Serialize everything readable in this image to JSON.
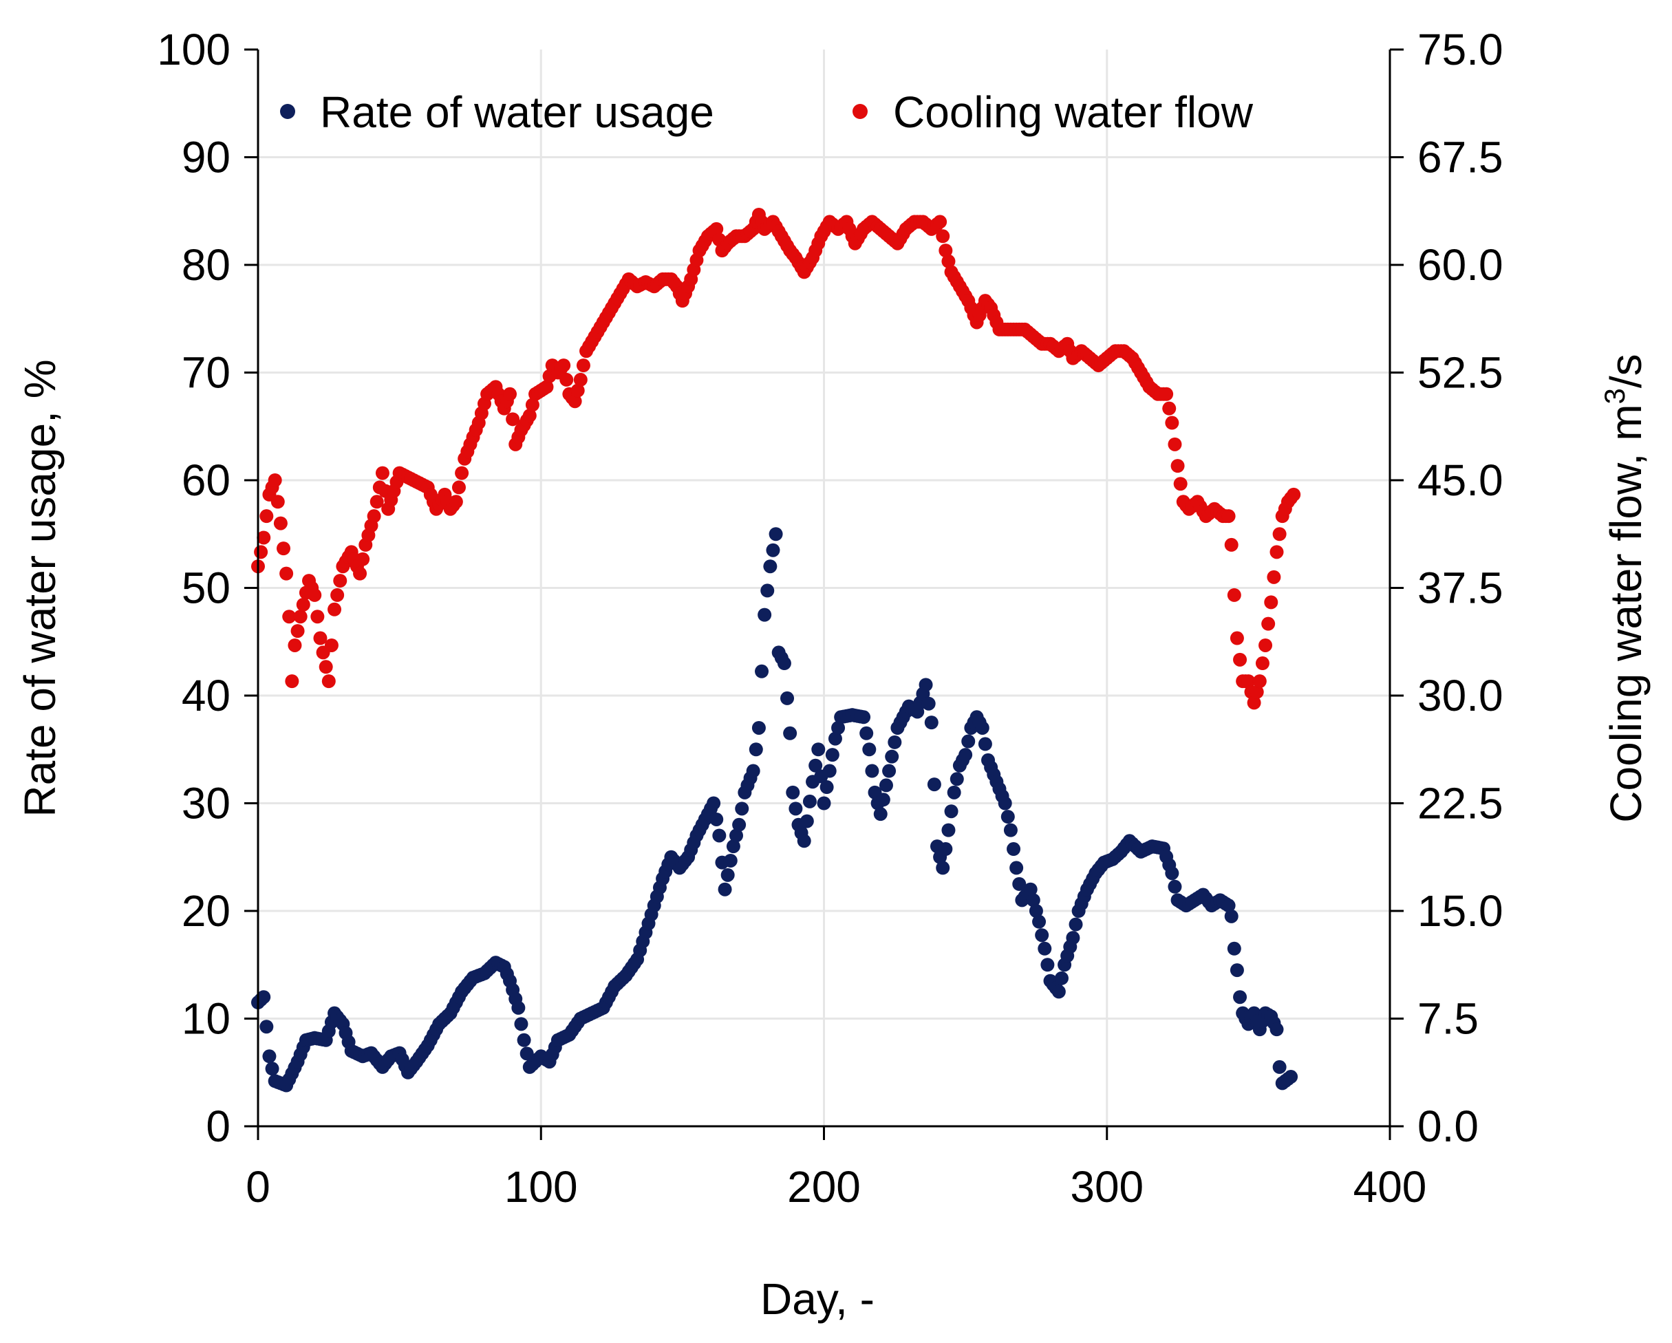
{
  "chart_data": {
    "type": "scatter",
    "title": "",
    "xlabel": "Day, -",
    "ylabel_left": "Rate of water usage, %",
    "ylabel_right_prefix": "Cooling water flow, m",
    "ylabel_right_sup": "3",
    "ylabel_right_suffix": "/s",
    "xlim": [
      0,
      400
    ],
    "ylim_left": [
      0,
      100
    ],
    "ylim_right": [
      0,
      75
    ],
    "x_ticks": [
      "0",
      "100",
      "200",
      "300",
      "400"
    ],
    "y_left_ticks": [
      "0",
      "10",
      "20",
      "30",
      "40",
      "50",
      "60",
      "70",
      "80",
      "90",
      "100"
    ],
    "y_right_ticks": [
      "0.0",
      "7.5",
      "15.0",
      "22.5",
      "30.0",
      "37.5",
      "45.0",
      "52.5",
      "60.0",
      "67.5",
      "75.0"
    ],
    "grid": true,
    "legend_position": "top",
    "series": [
      {
        "name": "Rate of water usage",
        "axis": "left",
        "color": "#0e1f5b",
        "anchors": [
          [
            0,
            11.5
          ],
          [
            2,
            12
          ],
          [
            4,
            6.5
          ],
          [
            6,
            4.2
          ],
          [
            10,
            3.8
          ],
          [
            14,
            6
          ],
          [
            17,
            8
          ],
          [
            20,
            8.2
          ],
          [
            24,
            8
          ],
          [
            27,
            10.5
          ],
          [
            30,
            9.5
          ],
          [
            33,
            7
          ],
          [
            37,
            6.5
          ],
          [
            40,
            6.8
          ],
          [
            44,
            5.5
          ],
          [
            47,
            6.5
          ],
          [
            50,
            6.8
          ],
          [
            53,
            5.0
          ],
          [
            56,
            6.0
          ],
          [
            60,
            7.5
          ],
          [
            64,
            9.5
          ],
          [
            68,
            10.5
          ],
          [
            72,
            12.5
          ],
          [
            76,
            13.8
          ],
          [
            80,
            14.2
          ],
          [
            84,
            15.2
          ],
          [
            87,
            14.8
          ],
          [
            89,
            13.5
          ],
          [
            92,
            11
          ],
          [
            94,
            8
          ],
          [
            96,
            5.5
          ],
          [
            100,
            6.5
          ],
          [
            103,
            6
          ],
          [
            106,
            8
          ],
          [
            110,
            8.5
          ],
          [
            114,
            10
          ],
          [
            118,
            10.5
          ],
          [
            122,
            11
          ],
          [
            126,
            13
          ],
          [
            130,
            14
          ],
          [
            134,
            15.5
          ],
          [
            137,
            18
          ],
          [
            140,
            20.5
          ],
          [
            143,
            23
          ],
          [
            146,
            25
          ],
          [
            149,
            24
          ],
          [
            152,
            25
          ],
          [
            155,
            27
          ],
          [
            158,
            28.5
          ],
          [
            161,
            30
          ],
          [
            163,
            27
          ],
          [
            165,
            22
          ],
          [
            168,
            26
          ],
          [
            170,
            28
          ],
          [
            172,
            31
          ],
          [
            175,
            33
          ],
          [
            177,
            37
          ],
          [
            179,
            47.5
          ],
          [
            181,
            52
          ],
          [
            183,
            55
          ],
          [
            184,
            44
          ],
          [
            186,
            43
          ],
          [
            188,
            36.5
          ],
          [
            189,
            31
          ],
          [
            191,
            28
          ],
          [
            193,
            26.5
          ],
          [
            196,
            32
          ],
          [
            198,
            35
          ],
          [
            200,
            30
          ],
          [
            202,
            33
          ],
          [
            204,
            36
          ],
          [
            206,
            38
          ],
          [
            210,
            38.2
          ],
          [
            214,
            38
          ],
          [
            216,
            35
          ],
          [
            218,
            31
          ],
          [
            220,
            29
          ],
          [
            223,
            33
          ],
          [
            226,
            37
          ],
          [
            230,
            39
          ],
          [
            233,
            38.5
          ],
          [
            236,
            41
          ],
          [
            238,
            37.5
          ],
          [
            240,
            26
          ],
          [
            242,
            24
          ],
          [
            244,
            27.5
          ],
          [
            246,
            31
          ],
          [
            248,
            33.5
          ],
          [
            250,
            34.5
          ],
          [
            252,
            37
          ],
          [
            254,
            38
          ],
          [
            256,
            37
          ],
          [
            258,
            34
          ],
          [
            261,
            32
          ],
          [
            264,
            30
          ],
          [
            266,
            27.5
          ],
          [
            268,
            24
          ],
          [
            270,
            21
          ],
          [
            273,
            22
          ],
          [
            276,
            19
          ],
          [
            278,
            16.5
          ],
          [
            280,
            13.5
          ],
          [
            283,
            12.5
          ],
          [
            285,
            15
          ],
          [
            288,
            17.5
          ],
          [
            290,
            20
          ],
          [
            293,
            22
          ],
          [
            296,
            23.5
          ],
          [
            299,
            24.5
          ],
          [
            302,
            24.8
          ],
          [
            305,
            25.5
          ],
          [
            308,
            26.5
          ],
          [
            312,
            25.5
          ],
          [
            316,
            26
          ],
          [
            320,
            25.8
          ],
          [
            323,
            23.5
          ],
          [
            325,
            21
          ],
          [
            328,
            20.5
          ],
          [
            331,
            21
          ],
          [
            334,
            21.5
          ],
          [
            337,
            20.5
          ],
          [
            340,
            21
          ],
          [
            343,
            20.5
          ],
          [
            344,
            19.5
          ],
          [
            345,
            16.5
          ],
          [
            346,
            14.5
          ],
          [
            347,
            12
          ],
          [
            348,
            10.5
          ],
          [
            350,
            9.5
          ],
          [
            352,
            10.5
          ],
          [
            354,
            9
          ],
          [
            356,
            10.5
          ],
          [
            358,
            10.2
          ],
          [
            360,
            9
          ],
          [
            361,
            5.5
          ],
          [
            362,
            4.0
          ],
          [
            365,
            4.6
          ]
        ]
      },
      {
        "name": "Cooling water flow",
        "axis": "right",
        "color": "#e10b0b",
        "anchors": [
          [
            0,
            39
          ],
          [
            2,
            41
          ],
          [
            4,
            44
          ],
          [
            6,
            45
          ],
          [
            8,
            42
          ],
          [
            10,
            38.5
          ],
          [
            11,
            35.5
          ],
          [
            12,
            31
          ],
          [
            13,
            33.5
          ],
          [
            15,
            35.5
          ],
          [
            18,
            38
          ],
          [
            20,
            37
          ],
          [
            22,
            34
          ],
          [
            24,
            32
          ],
          [
            25,
            31
          ],
          [
            27,
            36
          ],
          [
            30,
            39
          ],
          [
            33,
            40
          ],
          [
            36,
            38.5
          ],
          [
            38,
            40.5
          ],
          [
            41,
            42.5
          ],
          [
            44,
            45.5
          ],
          [
            46,
            43
          ],
          [
            50,
            45.5
          ],
          [
            55,
            45
          ],
          [
            60,
            44.5
          ],
          [
            63,
            43
          ],
          [
            66,
            44
          ],
          [
            68,
            43
          ],
          [
            70,
            43.5
          ],
          [
            73,
            46.5
          ],
          [
            76,
            48
          ],
          [
            78,
            49
          ],
          [
            81,
            51
          ],
          [
            84,
            51.5
          ],
          [
            87,
            50
          ],
          [
            89,
            51
          ],
          [
            91,
            47.5
          ],
          [
            93,
            48.5
          ],
          [
            96,
            49.5
          ],
          [
            98,
            51
          ],
          [
            102,
            51.5
          ],
          [
            104,
            53
          ],
          [
            106,
            52.5
          ],
          [
            108,
            53
          ],
          [
            110,
            51
          ],
          [
            112,
            50.5
          ],
          [
            114,
            52
          ],
          [
            116,
            54
          ],
          [
            119,
            55
          ],
          [
            122,
            56
          ],
          [
            125,
            57
          ],
          [
            128,
            58
          ],
          [
            131,
            59
          ],
          [
            134,
            58.5
          ],
          [
            137,
            58.8
          ],
          [
            140,
            58.5
          ],
          [
            143,
            59
          ],
          [
            146,
            59
          ],
          [
            148,
            58.5
          ],
          [
            150,
            57.5
          ],
          [
            153,
            59
          ],
          [
            156,
            61
          ],
          [
            159,
            62
          ],
          [
            162,
            62.5
          ],
          [
            164,
            61
          ],
          [
            166,
            61.5
          ],
          [
            169,
            62
          ],
          [
            172,
            62
          ],
          [
            175,
            62.5
          ],
          [
            177,
            63.5
          ],
          [
            179,
            62.5
          ],
          [
            182,
            63
          ],
          [
            185,
            62
          ],
          [
            188,
            61
          ],
          [
            190,
            60.5
          ],
          [
            193,
            59.5
          ],
          [
            196,
            60.5
          ],
          [
            199,
            62
          ],
          [
            202,
            63
          ],
          [
            205,
            62.5
          ],
          [
            208,
            63
          ],
          [
            211,
            61.5
          ],
          [
            214,
            62.5
          ],
          [
            217,
            63
          ],
          [
            220,
            62.5
          ],
          [
            223,
            62
          ],
          [
            226,
            61.5
          ],
          [
            229,
            62.5
          ],
          [
            232,
            63
          ],
          [
            235,
            63
          ],
          [
            238,
            62.5
          ],
          [
            241,
            63
          ],
          [
            243,
            61
          ],
          [
            245,
            59.5
          ],
          [
            248,
            58.5
          ],
          [
            251,
            57.5
          ],
          [
            254,
            56
          ],
          [
            257,
            57.5
          ],
          [
            259,
            57
          ],
          [
            262,
            55.5
          ],
          [
            265,
            55.5
          ],
          [
            268,
            55.5
          ],
          [
            271,
            55.5
          ],
          [
            274,
            55
          ],
          [
            277,
            54.5
          ],
          [
            280,
            54.5
          ],
          [
            283,
            54
          ],
          [
            286,
            54.5
          ],
          [
            288,
            53.5
          ],
          [
            291,
            54
          ],
          [
            294,
            53.5
          ],
          [
            297,
            53
          ],
          [
            300,
            53.5
          ],
          [
            303,
            54
          ],
          [
            306,
            54
          ],
          [
            309,
            53.5
          ],
          [
            312,
            52.5
          ],
          [
            315,
            51.5
          ],
          [
            318,
            51
          ],
          [
            321,
            51
          ],
          [
            323,
            49
          ],
          [
            325,
            46
          ],
          [
            327,
            43.5
          ],
          [
            329,
            43
          ],
          [
            332,
            43.5
          ],
          [
            335,
            42.5
          ],
          [
            338,
            43
          ],
          [
            341,
            42.5
          ],
          [
            343,
            42.5
          ],
          [
            344,
            40.5
          ],
          [
            345,
            37
          ],
          [
            346,
            34
          ],
          [
            348,
            31
          ],
          [
            350,
            31
          ],
          [
            352,
            29.5
          ],
          [
            354,
            31
          ],
          [
            356,
            33.5
          ],
          [
            358,
            36.5
          ],
          [
            360,
            40
          ],
          [
            362,
            42.5
          ],
          [
            364,
            43.5
          ],
          [
            366,
            44
          ]
        ]
      }
    ]
  }
}
